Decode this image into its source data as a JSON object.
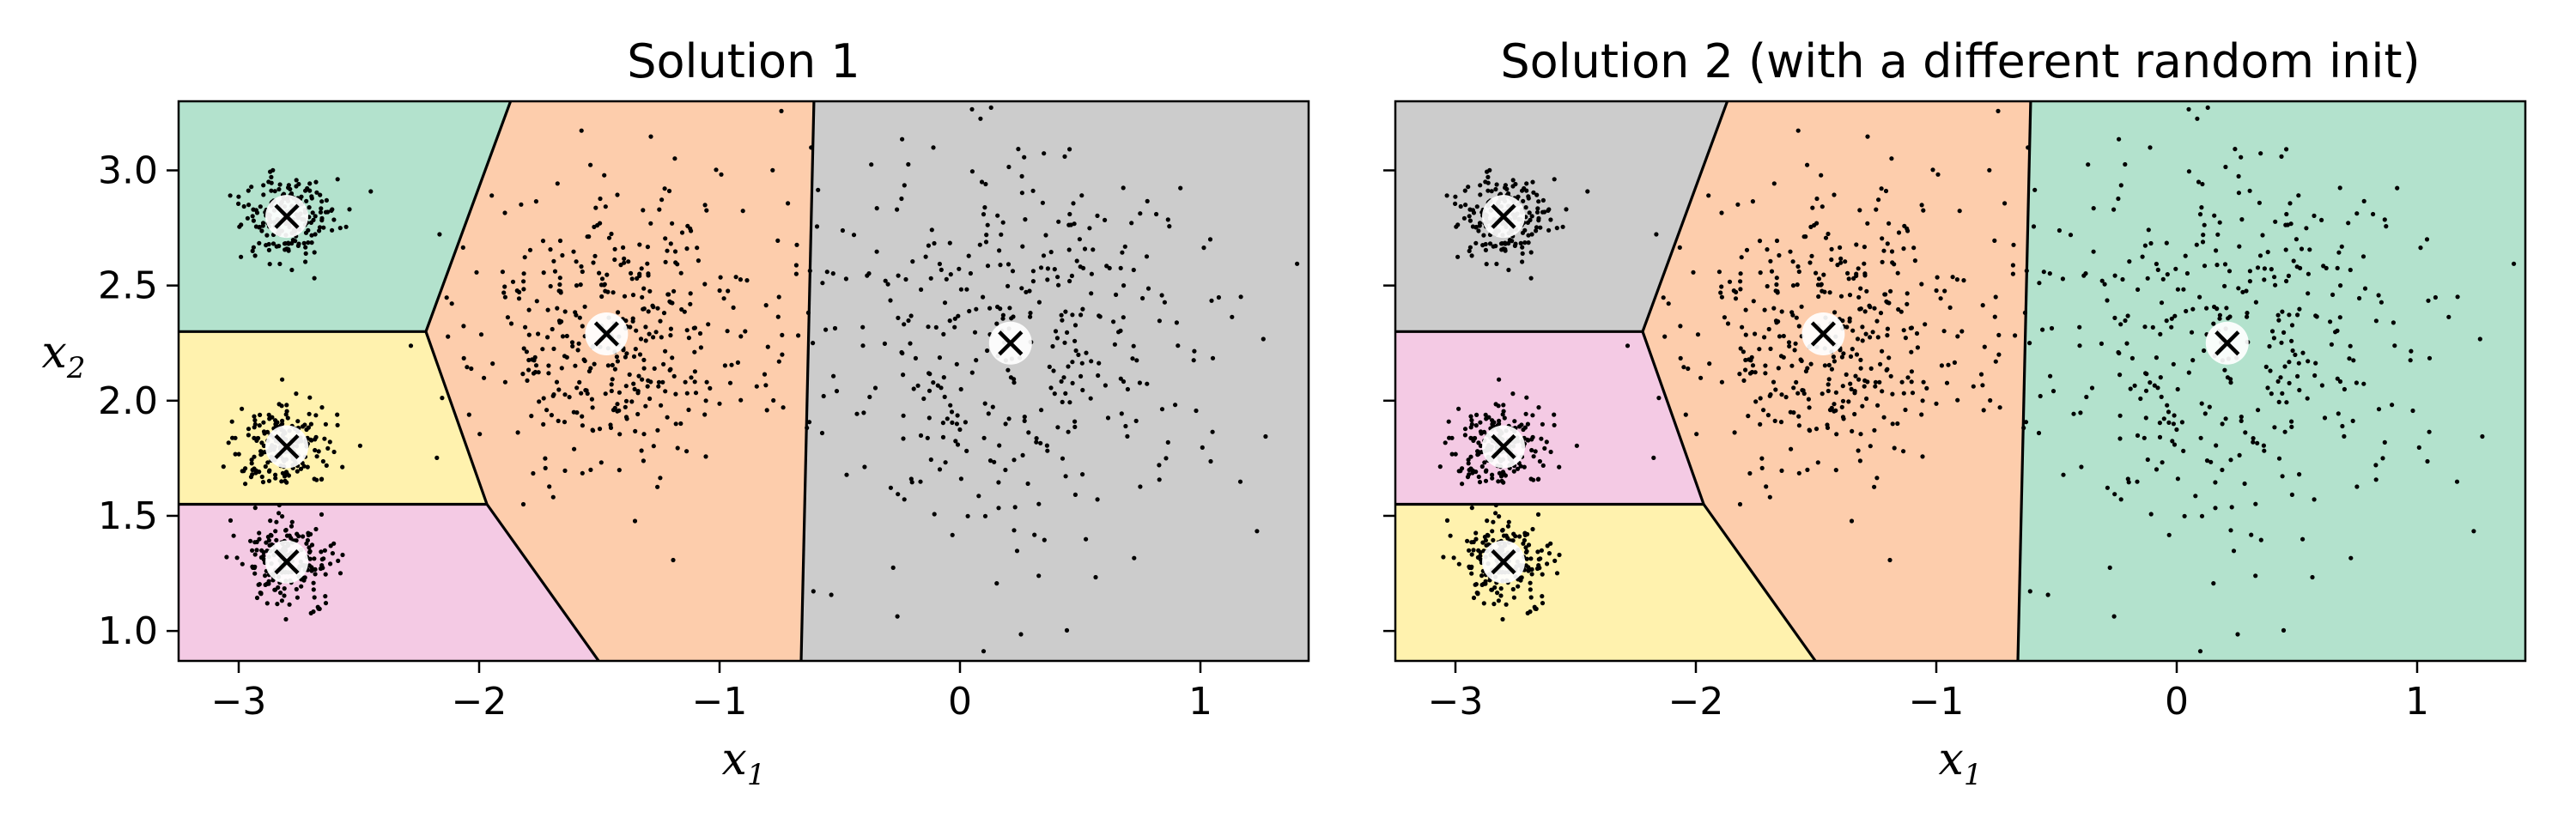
{
  "chart_data": [
    {
      "type": "scatter",
      "title": "Solution 1",
      "xlabel": "x",
      "xlabel_sub": "1",
      "ylabel": "x",
      "ylabel_sub": "2",
      "xlim": [
        -3.25,
        1.45
      ],
      "ylim": [
        0.87,
        3.3
      ],
      "xticks": [
        {
          "v": -3,
          "label": "−3"
        },
        {
          "v": -2,
          "label": "−2"
        },
        {
          "v": -1,
          "label": "−1"
        },
        {
          "v": 0,
          "label": "0"
        },
        {
          "v": 1,
          "label": "1"
        }
      ],
      "yticks": [
        {
          "v": 1.0,
          "label": "1.0"
        },
        {
          "v": 1.5,
          "label": "1.5"
        },
        {
          "v": 2.0,
          "label": "2.0"
        },
        {
          "v": 2.5,
          "label": "2.5"
        },
        {
          "v": 3.0,
          "label": "3.0"
        }
      ],
      "show_ytick_labels": true,
      "centroids": [
        {
          "x": -2.8,
          "y": 2.8,
          "region_color": "#b3e2cd"
        },
        {
          "x": -2.8,
          "y": 1.8,
          "region_color": "#fff2ae"
        },
        {
          "x": -2.8,
          "y": 1.3,
          "region_color": "#f4cae4"
        },
        {
          "x": -1.47,
          "y": 2.29,
          "region_color": "#fdcdac"
        },
        {
          "x": 0.21,
          "y": 2.25,
          "region_color": "#cccccc"
        }
      ],
      "clusters": [
        {
          "x": -2.8,
          "y": 2.8,
          "std": 0.1,
          "n": 200
        },
        {
          "x": -2.8,
          "y": 1.8,
          "std": 0.1,
          "n": 200
        },
        {
          "x": -2.8,
          "y": 1.3,
          "std": 0.1,
          "n": 200
        },
        {
          "x": -1.47,
          "y": 2.29,
          "std": 0.3,
          "n": 400
        },
        {
          "x": 0.21,
          "y": 2.25,
          "std": 0.45,
          "n": 400
        }
      ]
    },
    {
      "type": "scatter",
      "title": "Solution 2 (with a different random init)",
      "xlabel": "x",
      "xlabel_sub": "1",
      "ylabel": "",
      "ylabel_sub": "",
      "xlim": [
        -3.25,
        1.45
      ],
      "ylim": [
        0.87,
        3.3
      ],
      "xticks": [
        {
          "v": -3,
          "label": "−3"
        },
        {
          "v": -2,
          "label": "−2"
        },
        {
          "v": -1,
          "label": "−1"
        },
        {
          "v": 0,
          "label": "0"
        },
        {
          "v": 1,
          "label": "1"
        }
      ],
      "yticks": [
        {
          "v": 1.0,
          "label": ""
        },
        {
          "v": 1.5,
          "label": ""
        },
        {
          "v": 2.0,
          "label": ""
        },
        {
          "v": 2.5,
          "label": ""
        },
        {
          "v": 3.0,
          "label": ""
        }
      ],
      "show_ytick_labels": false,
      "centroids": [
        {
          "x": -2.8,
          "y": 2.8,
          "region_color": "#cccccc"
        },
        {
          "x": -2.8,
          "y": 1.8,
          "region_color": "#f4cae4"
        },
        {
          "x": -2.8,
          "y": 1.3,
          "region_color": "#fff2ae"
        },
        {
          "x": -1.47,
          "y": 2.29,
          "region_color": "#fdcdac"
        },
        {
          "x": 0.21,
          "y": 2.25,
          "region_color": "#b3e2cd"
        }
      ],
      "clusters": [
        {
          "x": -2.8,
          "y": 2.8,
          "std": 0.1,
          "n": 200
        },
        {
          "x": -2.8,
          "y": 1.8,
          "std": 0.1,
          "n": 200
        },
        {
          "x": -2.8,
          "y": 1.3,
          "std": 0.1,
          "n": 200
        },
        {
          "x": -1.47,
          "y": 2.29,
          "std": 0.3,
          "n": 400
        },
        {
          "x": 0.21,
          "y": 2.25,
          "std": 0.45,
          "n": 400
        }
      ]
    }
  ]
}
